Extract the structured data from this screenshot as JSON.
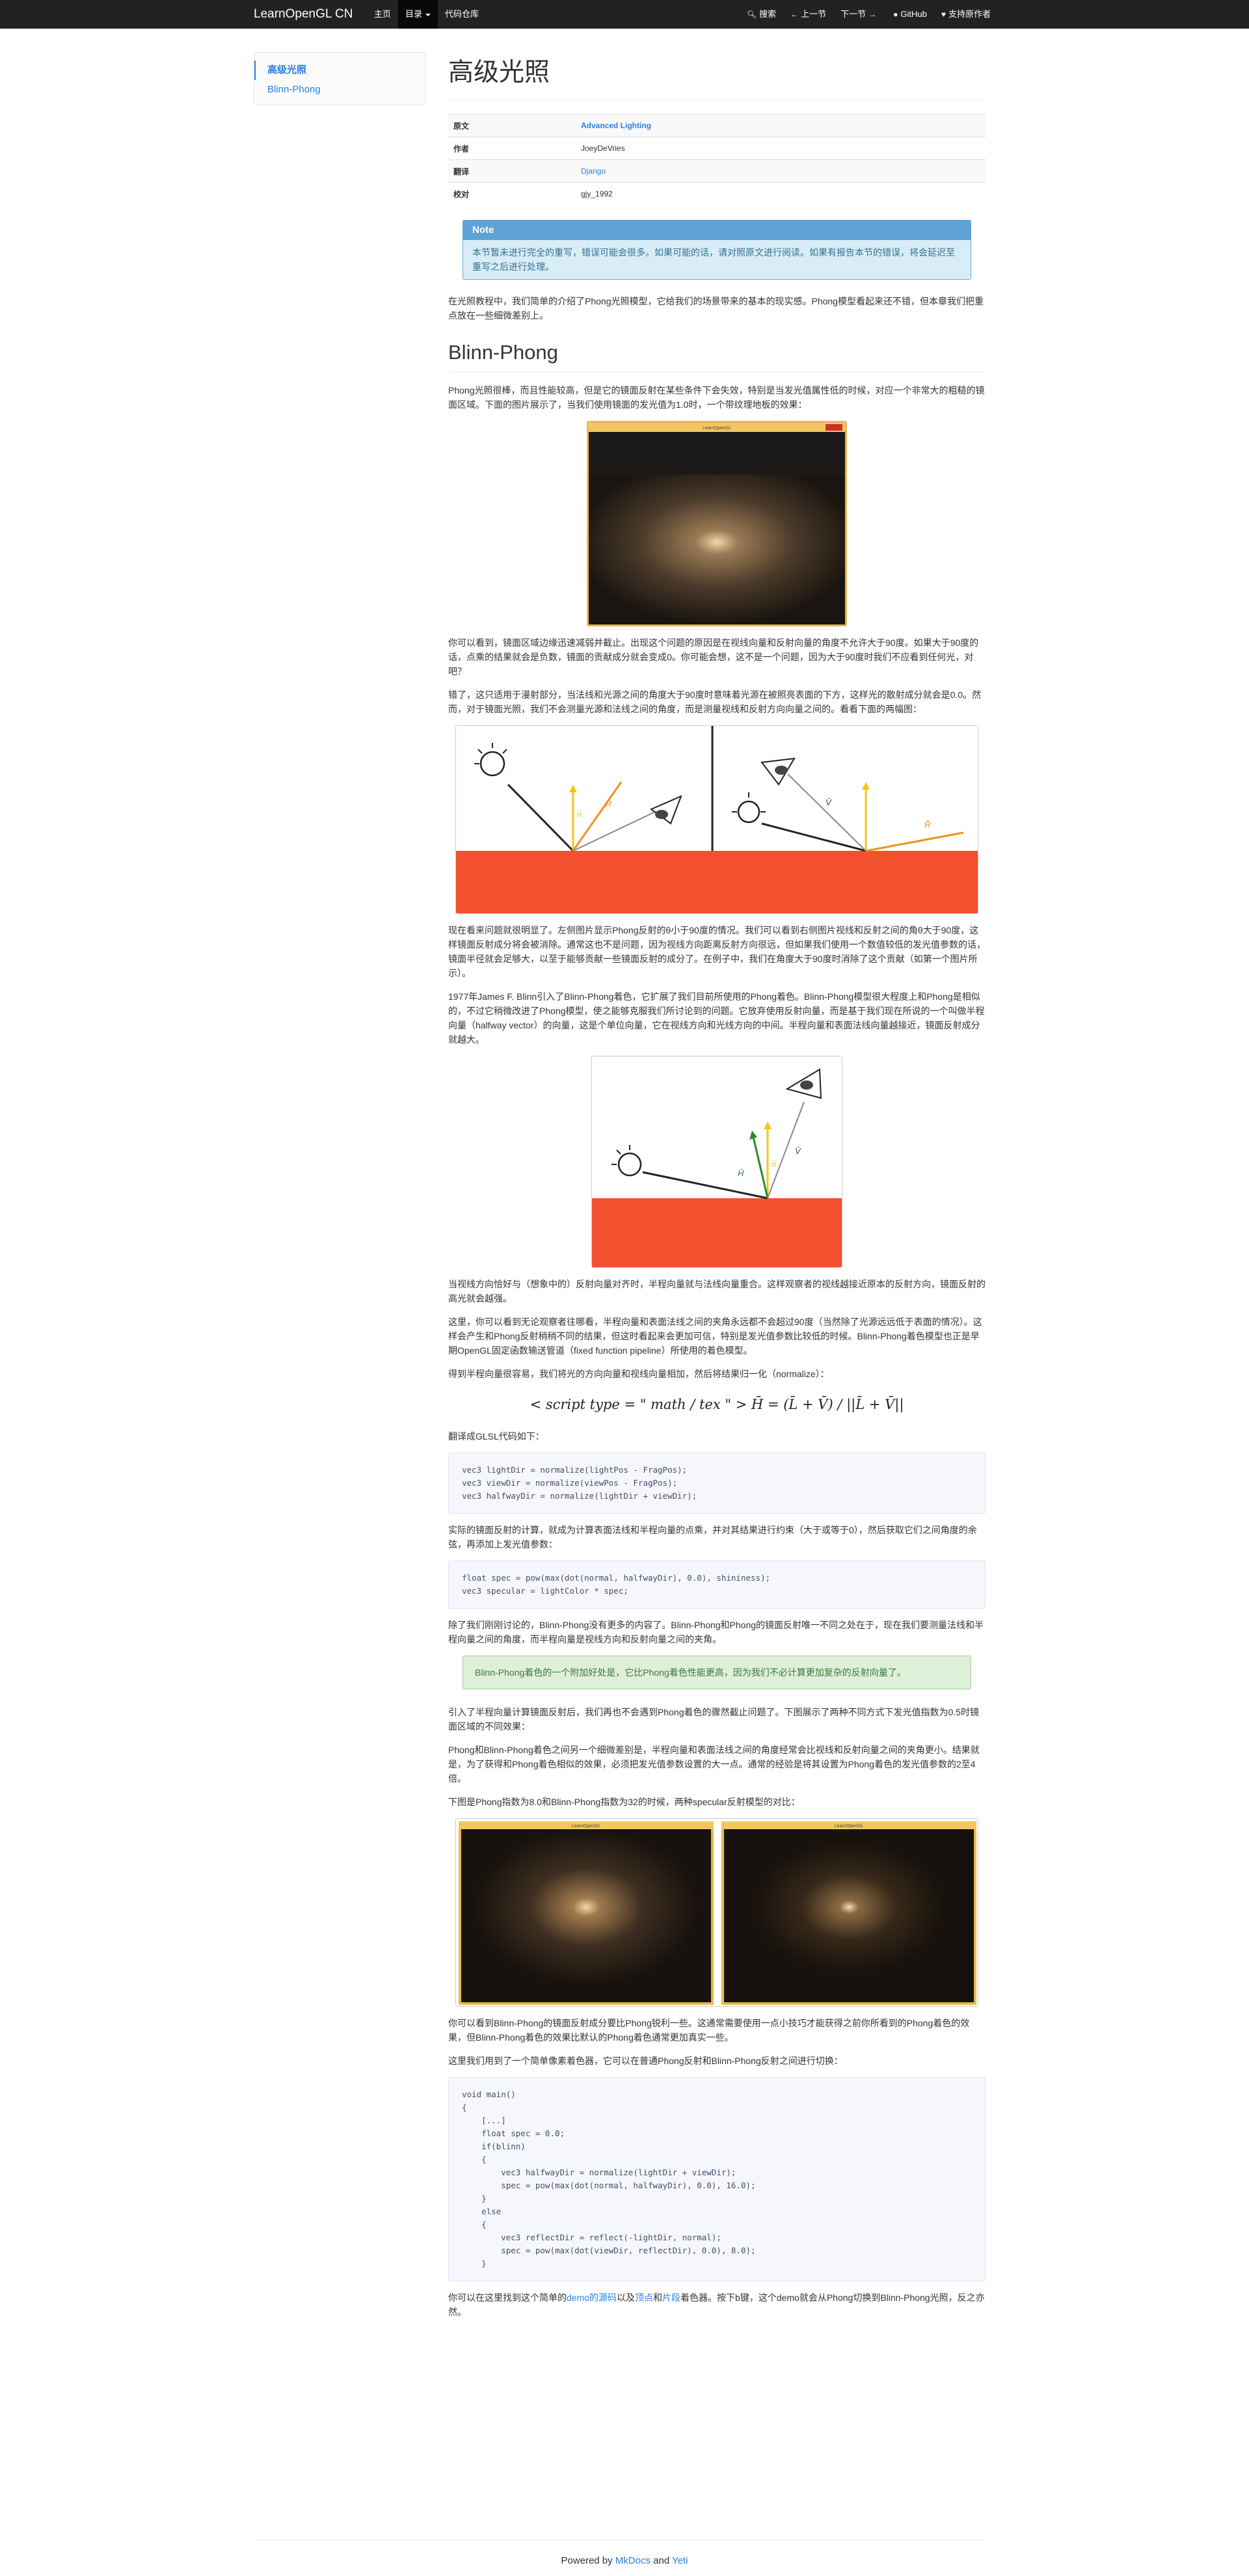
{
  "navbar": {
    "brand": "LearnOpenGL CN",
    "home": "主页",
    "toc": "目录",
    "repo": "代码仓库",
    "search": "搜索",
    "prev": "上一节",
    "next": "下一节",
    "github": "GitHub",
    "support": "支持原作者"
  },
  "sidebar": {
    "items": [
      "高级光照",
      "Blinn-Phong"
    ]
  },
  "page": {
    "title": "高级光照",
    "meta": [
      {
        "key": "原文",
        "value": "Advanced Lighting"
      },
      {
        "key": "作者",
        "value": "JoeyDeVries"
      },
      {
        "key": "翻译",
        "value": "Django"
      },
      {
        "key": "校对",
        "value": "gjy_1992"
      }
    ],
    "note_title": "Note",
    "note_body": "本节暂未进行完全的重写，错误可能会很多。如果可能的话，请对照原文进行阅读。如果有报告本节的错误，将会延迟至重写之后进行处理。",
    "intro": "在光照教程中，我们简单的介绍了Phong光照模型，它给我们的场景带来的基本的现实感。Phong模型看起来还不错，但本章我们把重点放在一些细微差别上。",
    "section": "Blinn-Phong",
    "p1": "Phong光照很棒，而且性能较高，但是它的镜面反射在某些条件下会失效，特别是当发光值属性低的时候，对应一个非常大的粗糙的镜面区域。下面的图片展示了，当我们使用镜面的发光值为1.0时，一个带纹理地板的效果：",
    "fig1_title": "LearnOpenGL",
    "p2": "你可以看到，镜面区域边缘迅速减弱并截止。出现这个问题的原因是在视线向量和反射向量的角度不允许大于90度。如果大于90度的话，点乘的结果就会是负数，镜面的贡献成分就会变成0。你可能会想，这不是一个问题，因为大于90度时我们不应看到任何光，对吧？",
    "p3": "错了，这只适用于漫射部分，当法线和光源之间的角度大于90度时意味着光源在被照亮表面的下方，这样光的散射成分就会是0.0。然而，对于镜面光照，我们不会测量光源和法线之间的角度，而是测量视线和反射方向向量之间的。看看下面的两幅图：",
    "p4": "现在看来问题就很明显了。左侧图片显示Phong反射的θ小于90度的情况。我们可以看到右侧图片视线和反射之间的角θ大于90度，这样镜面反射成分将会被消除。通常这也不是问题，因为视线方向距离反射方向很远，但如果我们使用一个数值较低的发光值参数的话，镜面半径就会足够大，以至于能够贡献一些镜面反射的成分了。在例子中，我们在角度大于90度时消除了这个贡献（如第一个图片所示）。",
    "p5": "1977年James F. Blinn引入了Blinn-Phong着色，它扩展了我们目前所使用的Phong着色。Blinn-Phong模型很大程度上和Phong是相似的，不过它稍微改进了Phong模型，使之能够克服我们所讨论到的问题。它放弃使用反射向量，而是基于我们现在所说的一个叫做半程向量（halfway vector）的向量，这是个单位向量，它在视线方向和光线方向的中间。半程向量和表面法线向量越接近，镜面反射成分就越大。",
    "p6": "当视线方向恰好与（想象中的）反射向量对齐时，半程向量就与法线向量重合。这样观察者的视线越接近原本的反射方向，镜面反射的高光就会越强。",
    "p7": "这里，你可以看到无论观察者往哪看，半程向量和表面法线之间的夹角永远都不会超过90度（当然除了光源远远低于表面的情况）。这样会产生和Phong反射稍稍不同的结果，但这时看起来会更加可信，特别是发光值参数比较低的时候。Blinn-Phong着色模型也正是早期OpenGL固定函数输送管道（fixed function pipeline）所使用的着色模型。",
    "p8": "得到半程向量很容易，我们将光的方向向量和视线向量相加，然后将结果归一化（normalize）：",
    "formula": "< script type = \" math / tex \" > H̄ = (L̄ + V̄) / ||L̄ + V̄||",
    "p9": "翻译成GLSL代码如下：",
    "code1": [
      "vec3 lightDir = normalize(lightPos - FragPos);",
      "vec3 viewDir = normalize(viewPos - FragPos);",
      "vec3 halfwayDir = normalize(lightDir + viewDir);"
    ],
    "p10": "实际的镜面反射的计算，就成为计算表面法线和半程向量的点乘，并对其结果进行约束（大于或等于0），然后获取它们之间角度的余弦，再添加上发光值参数：",
    "code2": [
      "float spec = pow(max(dot(normal, halfwayDir), 0.0), shininess);",
      "vec3 specular = lightColor * spec;"
    ],
    "p11": "除了我们刚刚讨论的，Blinn-Phong没有更多的内容了。Blinn-Phong和Phong的镜面反射唯一不同之处在于，现在我们要测量法线和半程向量之间的角度，而半程向量是视线方向和反射向量之间的夹角。",
    "success": "Blinn-Phong着色的一个附加好处是，它比Phong着色性能更高，因为我们不必计算更加复杂的反射向量了。",
    "p12": "引入了半程向量计算镜面反射后，我们再也不会遇到Phong着色的骤然截止问题了。下图展示了两种不同方式下发光值指数为0.5时镜面区域的不同效果：",
    "p13": "Phong和Blinn-Phong着色之间另一个细微差别是，半程向量和表面法线之间的角度经常会比视线和反射向量之间的夹角更小。结果就是，为了获得和Phong着色相似的效果，必须把发光值参数设置的大一点。通常的经验是将其设置为Phong着色的发光值参数的2至4倍。",
    "p14": "下图是Phong指数为8.0和Blinn-Phong指数为32的时候，两种specular反射模型的对比：",
    "p15": "你可以看到Blinn-Phong的镜面反射成分要比Phong锐利一些。这通常需要使用一点小技巧才能获得之前你所看到的Phong着色的效果，但Blinn-Phong着色的效果比默认的Phong着色通常更加真实一些。",
    "p16": "这里我们用到了一个简单像素着色器，它可以在普通Phong反射和Blinn-Phong反射之间进行切换：",
    "code3": [
      "void main()",
      "{",
      "    [...]",
      "    float spec = 0.0;",
      "    if(blinn)",
      "    {",
      "        vec3 halfwayDir = normalize(lightDir + viewDir);",
      "        spec = pow(max(dot(normal, halfwayDir), 0.0), 16.0);",
      "    }",
      "    else",
      "    {",
      "        vec3 reflectDir = reflect(-lightDir, normal);",
      "        spec = pow(max(dot(viewDir, reflectDir), 0.0), 8.0);",
      "    }"
    ],
    "last_a": "你可以在这里找到这个简单的",
    "last_link1": "demo的源码",
    "last_b": "以及",
    "last_link2": "顶点",
    "last_c": "和",
    "last_link3": "片段",
    "last_d": "着色器。按下b键，这个demo就会从Phong切换到Blinn-Phong光照，反之亦然。",
    "diagram_labels": {
      "n": "n̄",
      "r": "R̄",
      "v": "V̄",
      "h": "H̄"
    }
  },
  "footer": {
    "prefix": "Powered by ",
    "mkdocs": "MkDocs",
    "and": " and ",
    "yeti": "Yeti"
  },
  "colors": {
    "navbar": "#222222",
    "link": "#2780e3",
    "floor": "#f35030",
    "yellow": "#f5c518",
    "orange": "#f0921e"
  }
}
